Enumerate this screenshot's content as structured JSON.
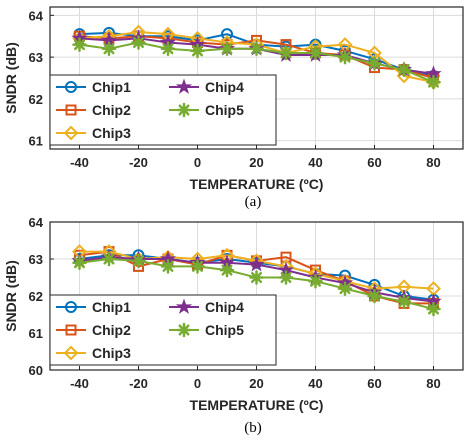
{
  "chart_data": [
    {
      "type": "line",
      "panel": "(a)",
      "xlabel": "TEMPERATURE (ºC)",
      "ylabel": "SNDR (dB)",
      "xlim": [
        -50,
        90
      ],
      "ylim": [
        60.8,
        64.2
      ],
      "xticks": [
        -40,
        -20,
        0,
        20,
        40,
        60,
        80
      ],
      "yticks": [
        61,
        62,
        63,
        64
      ],
      "grid": true,
      "legend_position": "lower-left",
      "x": [
        -40,
        -30,
        -20,
        -10,
        0,
        10,
        20,
        30,
        40,
        50,
        60,
        70,
        80
      ],
      "series": [
        {
          "name": "Chip1",
          "color": "#0072BD",
          "marker": "circle",
          "values": [
            63.55,
            63.58,
            63.5,
            63.5,
            63.4,
            63.55,
            63.3,
            63.25,
            63.3,
            63.15,
            62.95,
            62.7,
            62.55
          ]
        },
        {
          "name": "Chip2",
          "color": "#D95319",
          "marker": "square",
          "values": [
            63.5,
            63.45,
            63.5,
            63.45,
            63.35,
            63.3,
            63.4,
            63.3,
            63.1,
            63.05,
            62.75,
            62.7,
            62.5
          ]
        },
        {
          "name": "Chip3",
          "color": "#EDB120",
          "marker": "diamond",
          "values": [
            63.45,
            63.5,
            63.6,
            63.55,
            63.45,
            63.35,
            63.3,
            63.1,
            63.25,
            63.3,
            63.1,
            62.55,
            62.4
          ]
        },
        {
          "name": "Chip4",
          "color": "#7E2F8E",
          "marker": "star",
          "values": [
            63.45,
            63.4,
            63.45,
            63.35,
            63.3,
            63.2,
            63.2,
            63.05,
            63.05,
            63.05,
            62.85,
            62.7,
            62.6
          ]
        },
        {
          "name": "Chip5",
          "color": "#77AC30",
          "marker": "asterisk",
          "values": [
            63.3,
            63.2,
            63.35,
            63.2,
            63.15,
            63.2,
            63.2,
            63.1,
            63.1,
            63.0,
            62.85,
            62.7,
            62.4
          ]
        }
      ]
    },
    {
      "type": "line",
      "panel": "(b)",
      "xlabel": "TEMPERATURE (ºC)",
      "ylabel": "SNDR (dB)",
      "xlim": [
        -50,
        90
      ],
      "ylim": [
        60,
        64
      ],
      "xticks": [
        -40,
        -20,
        0,
        20,
        40,
        60,
        80
      ],
      "yticks": [
        60,
        61,
        62,
        63,
        64
      ],
      "grid": true,
      "legend_position": "lower-left",
      "x": [
        -40,
        -30,
        -20,
        -10,
        0,
        10,
        20,
        30,
        40,
        50,
        60,
        70,
        80
      ],
      "series": [
        {
          "name": "Chip1",
          "color": "#0072BD",
          "marker": "circle",
          "values": [
            63.0,
            63.1,
            63.1,
            63.0,
            62.9,
            63.0,
            62.9,
            62.8,
            62.6,
            62.55,
            62.3,
            62.0,
            61.9
          ]
        },
        {
          "name": "Chip2",
          "color": "#D95319",
          "marker": "square",
          "values": [
            63.1,
            63.2,
            62.8,
            63.0,
            62.85,
            63.1,
            62.95,
            63.05,
            62.7,
            62.4,
            62.0,
            61.8,
            61.8
          ]
        },
        {
          "name": "Chip3",
          "color": "#EDB120",
          "marker": "diamond",
          "values": [
            63.2,
            63.2,
            63.0,
            63.05,
            63.0,
            63.1,
            62.95,
            62.8,
            62.6,
            62.4,
            62.2,
            62.25,
            62.2
          ]
        },
        {
          "name": "Chip4",
          "color": "#7E2F8E",
          "marker": "star",
          "values": [
            62.95,
            63.05,
            63.0,
            63.0,
            62.9,
            62.9,
            62.85,
            62.7,
            62.5,
            62.35,
            62.1,
            61.95,
            61.85
          ]
        },
        {
          "name": "Chip5",
          "color": "#77AC30",
          "marker": "asterisk",
          "values": [
            62.9,
            63.0,
            62.95,
            62.8,
            62.8,
            62.7,
            62.5,
            62.5,
            62.4,
            62.2,
            62.0,
            61.85,
            61.65
          ]
        }
      ]
    }
  ],
  "captions": [
    "(a)",
    "(b)"
  ]
}
